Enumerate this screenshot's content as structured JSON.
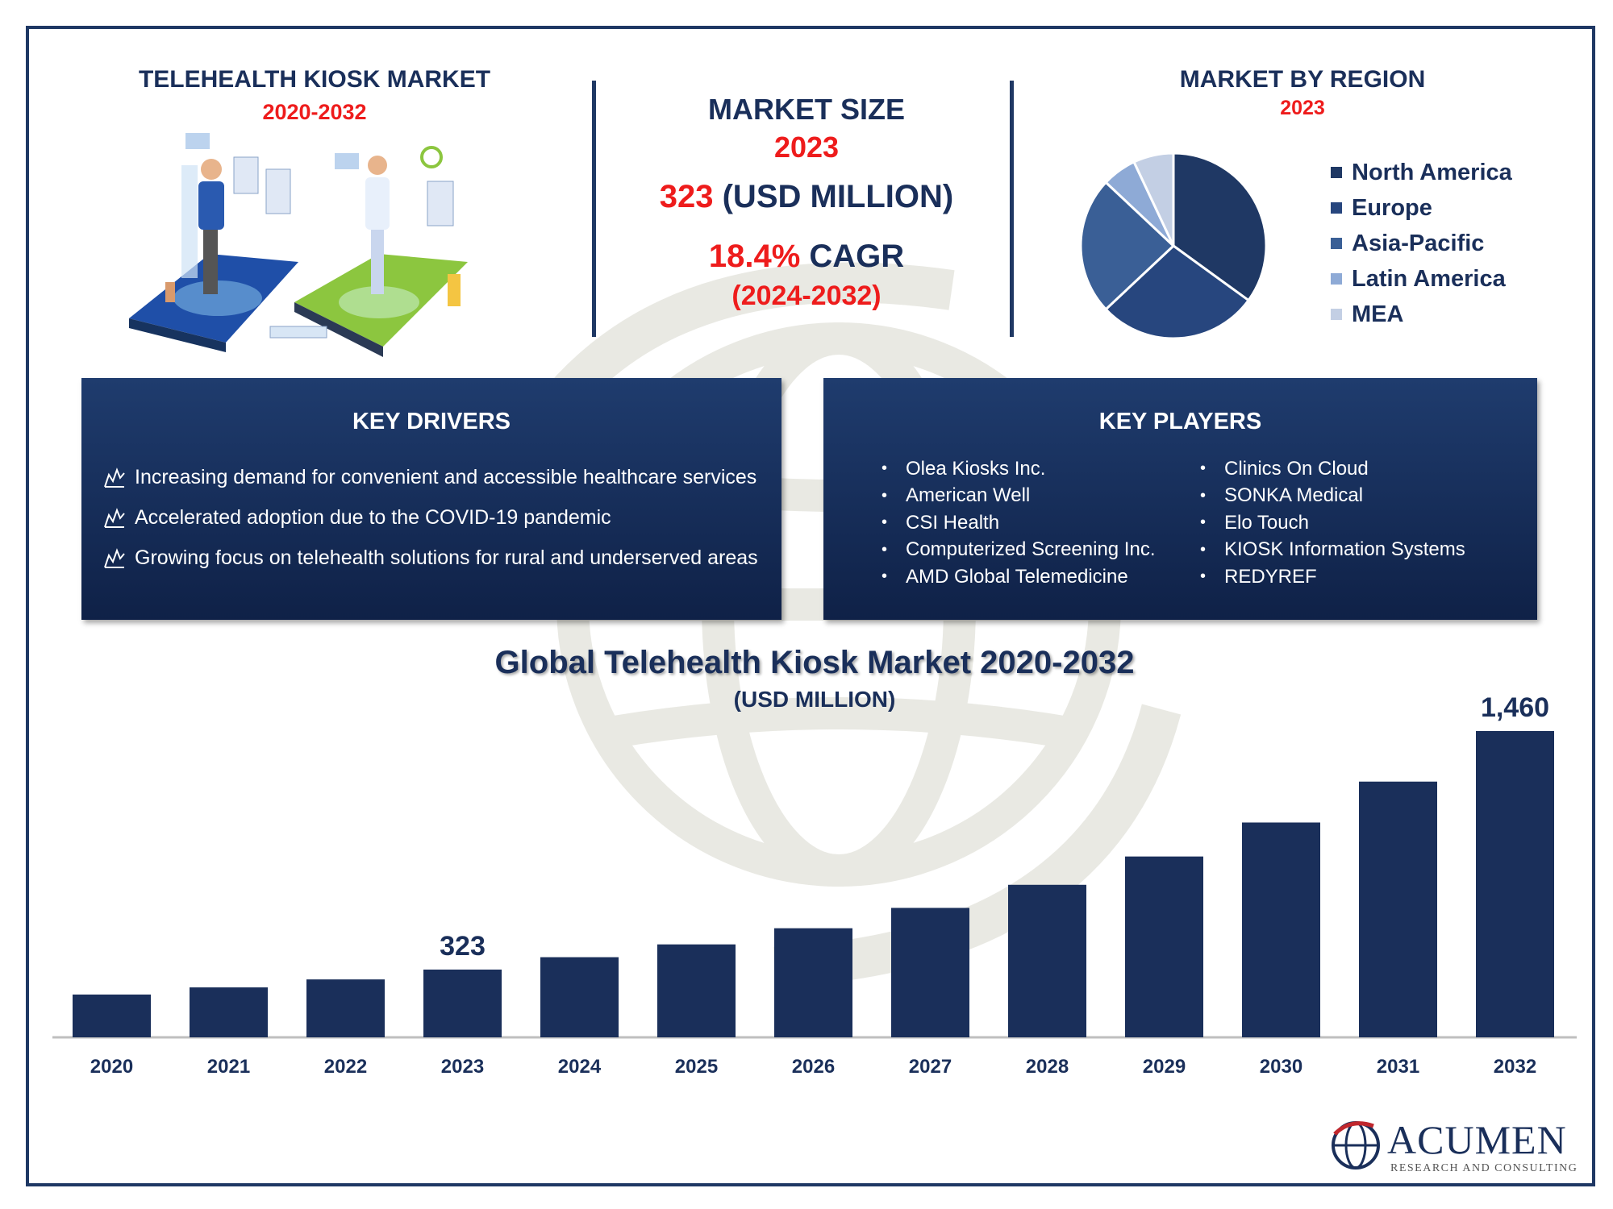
{
  "header": {
    "title": "TELEHEALTH KIOSK MARKET",
    "years": "2020-2032"
  },
  "market_size": {
    "title": "MARKET SIZE",
    "year": "2023",
    "value_number": "323",
    "value_unit": " (USD MILLION)",
    "cagr_percent": "18.4%",
    "cagr_label": " CAGR",
    "cagr_period": "(2024-2032)"
  },
  "region": {
    "title": "MARKET BY REGION",
    "year": "2023",
    "legend": [
      {
        "label": "North America",
        "color": "#1f3864"
      },
      {
        "label": "Europe",
        "color": "#27467e"
      },
      {
        "label": "Asia-Pacific",
        "color": "#3a5f96"
      },
      {
        "label": "Latin America",
        "color": "#8eaad6"
      },
      {
        "label": "MEA",
        "color": "#c3cfe4"
      }
    ],
    "slices": [
      35,
      28,
      24,
      6,
      7
    ]
  },
  "drivers": {
    "title": "KEY DRIVERS",
    "items": [
      "Increasing demand for convenient and accessible healthcare services",
      "Accelerated adoption due to the COVID-19 pandemic",
      "Growing focus on telehealth solutions for rural and underserved areas"
    ]
  },
  "players": {
    "title": "KEY PLAYERS",
    "col1": [
      "Olea Kiosks Inc.",
      "American Well",
      "CSI Health",
      "Computerized Screening Inc.",
      "AMD Global Telemedicine"
    ],
    "col2": [
      "Clinics On Cloud",
      "SONKA Medical",
      "Elo Touch",
      "KIOSK Information Systems",
      "REDYREF"
    ],
    "bullet": "•"
  },
  "chart_data": {
    "type": "bar",
    "title": "Global Telehealth Kiosk Market 2020-2032",
    "subtitle": "(USD MILLION)",
    "categories": [
      "2020",
      "2021",
      "2022",
      "2023",
      "2024",
      "2025",
      "2026",
      "2027",
      "2028",
      "2029",
      "2030",
      "2031",
      "2032"
    ],
    "values": [
      204,
      238,
      276,
      323,
      382,
      443,
      520,
      617,
      727,
      862,
      1024,
      1219,
      1460
    ],
    "data_labels": {
      "2023": "323",
      "2032": "1,460"
    },
    "bar_color": "#1a2f5a",
    "ylim": [
      0,
      1460
    ]
  },
  "logo": {
    "name": "ACUMEN",
    "tagline": "RESEARCH AND CONSULTING"
  }
}
